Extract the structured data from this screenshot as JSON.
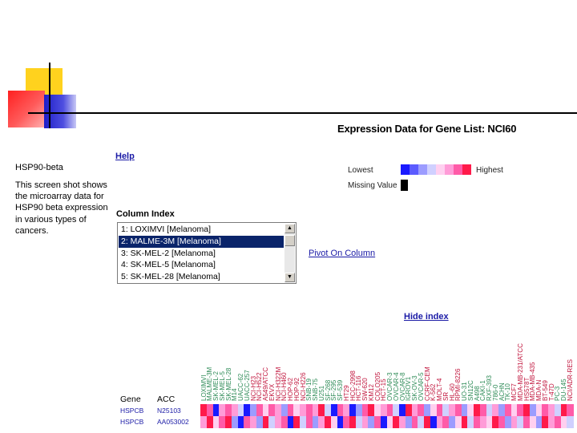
{
  "caption": {
    "title": "HSP90-beta",
    "body": "This screen shot shows the microarray data for HSP90 beta expression in various types of cancers."
  },
  "page_title": "Expression Data for Gene List: NCI60",
  "help_label": "Help",
  "legend": {
    "lowest": "Lowest",
    "highest": "Highest",
    "missing": "Missing Value",
    "colors": [
      "#1a1aff",
      "#5b5bff",
      "#9c9cff",
      "#d0d0ff",
      "#ffd0f0",
      "#ff9cd8",
      "#ff5ba8",
      "#ff1a4a"
    ],
    "missing_color": "#000000"
  },
  "column_index": {
    "label": "Column Index",
    "items": [
      "1: LOXIMVI [Melanoma]",
      "2: MALME-3M [Melanoma]",
      "3: SK-MEL-2 [Melanoma]",
      "4: SK-MEL-5 [Melanoma]",
      "5: SK-MEL-28 [Melanoma]"
    ],
    "selected_index": 1
  },
  "pivot_label": "Pivot On Column",
  "hide_index_label": "Hide index",
  "heatmap": {
    "gene_header": "Gene",
    "acc_header": "ACC",
    "rows": [
      {
        "gene": "HSPCB",
        "acc": "N25103"
      },
      {
        "gene": "HSPCB",
        "acc": "AA053002"
      }
    ],
    "columns": [
      {
        "label": "LOXIMVI",
        "color": "#2e8b57"
      },
      {
        "label": "MALME-3M",
        "color": "#2e8b57"
      },
      {
        "label": "SK-MEL-2",
        "color": "#2e8b57"
      },
      {
        "label": "SK-MEL-5",
        "color": "#2e8b57"
      },
      {
        "label": "SK-MEL-28",
        "color": "#2e8b57"
      },
      {
        "label": "M14",
        "color": "#2e8b57"
      },
      {
        "label": "UACC-62",
        "color": "#2e8b57"
      },
      {
        "label": "UACC-257",
        "color": "#2e8b57"
      },
      {
        "label": "NCI-H23",
        "color": "#c0143c"
      },
      {
        "label": "NCI-H522",
        "color": "#c0143c"
      },
      {
        "label": "A549/ATCC",
        "color": "#c0143c"
      },
      {
        "label": "EKVX",
        "color": "#c0143c"
      },
      {
        "label": "NCI-H322M",
        "color": "#c0143c"
      },
      {
        "label": "NCI-H460",
        "color": "#c0143c"
      },
      {
        "label": "HOP-62",
        "color": "#c0143c"
      },
      {
        "label": "HOP-92",
        "color": "#c0143c"
      },
      {
        "label": "NCI-H226",
        "color": "#c0143c"
      },
      {
        "label": "SNB-19",
        "color": "#2e8b57"
      },
      {
        "label": "SNB-75",
        "color": "#2e8b57"
      },
      {
        "label": "U251",
        "color": "#2e8b57"
      },
      {
        "label": "SF-268",
        "color": "#2e8b57"
      },
      {
        "label": "SF-295",
        "color": "#2e8b57"
      },
      {
        "label": "SF-539",
        "color": "#2e8b57"
      },
      {
        "label": "HT29",
        "color": "#c0143c"
      },
      {
        "label": "HCC-2998",
        "color": "#c0143c"
      },
      {
        "label": "HCT-116",
        "color": "#c0143c"
      },
      {
        "label": "SW-620",
        "color": "#c0143c"
      },
      {
        "label": "KM12",
        "color": "#c0143c"
      },
      {
        "label": "COLO205",
        "color": "#c0143c"
      },
      {
        "label": "HCT-15",
        "color": "#c0143c"
      },
      {
        "label": "OVCAR-3",
        "color": "#2e8b57"
      },
      {
        "label": "OVCAR-4",
        "color": "#2e8b57"
      },
      {
        "label": "OVCAR-8",
        "color": "#2e8b57"
      },
      {
        "label": "IGROV1",
        "color": "#2e8b57"
      },
      {
        "label": "SK-OV-3",
        "color": "#2e8b57"
      },
      {
        "label": "OVCAR-5",
        "color": "#2e8b57"
      },
      {
        "label": "CCRF-CEM",
        "color": "#c0143c"
      },
      {
        "label": "K-562",
        "color": "#c0143c"
      },
      {
        "label": "MOLT-4",
        "color": "#c0143c"
      },
      {
        "label": "SR",
        "color": "#c0143c"
      },
      {
        "label": "HL-60",
        "color": "#c0143c"
      },
      {
        "label": "RPMI-8226",
        "color": "#c0143c"
      },
      {
        "label": "UO-31",
        "color": "#2e8b57"
      },
      {
        "label": "SN12C",
        "color": "#2e8b57"
      },
      {
        "label": "A498",
        "color": "#2e8b57"
      },
      {
        "label": "CAKI-1",
        "color": "#2e8b57"
      },
      {
        "label": "RXF-393",
        "color": "#2e8b57"
      },
      {
        "label": "786-0",
        "color": "#2e8b57"
      },
      {
        "label": "ACHN",
        "color": "#2e8b57"
      },
      {
        "label": "TK-10",
        "color": "#2e8b57"
      },
      {
        "label": "MCF7",
        "color": "#c0143c"
      },
      {
        "label": "MDA-MB-231/ATCC",
        "color": "#c0143c"
      },
      {
        "label": "HS578T",
        "color": "#c0143c"
      },
      {
        "label": "MDA-MB-435",
        "color": "#c0143c"
      },
      {
        "label": "MDA-N",
        "color": "#c0143c"
      },
      {
        "label": "BT-549",
        "color": "#c0143c"
      },
      {
        "label": "T-47D",
        "color": "#c0143c"
      },
      {
        "label": "PC-3",
        "color": "#2e8b57"
      },
      {
        "label": "DU-145",
        "color": "#2e8b57"
      },
      {
        "label": "NCI/ADR-RES",
        "color": "#c0143c"
      }
    ],
    "row_levels": [
      [
        7,
        6,
        0,
        5,
        6,
        5,
        3,
        0,
        2,
        6,
        4,
        6,
        5,
        2,
        6,
        4,
        5,
        6,
        5,
        7,
        3,
        0,
        6,
        5,
        0,
        2,
        6,
        7,
        4,
        5,
        6,
        3,
        0,
        7,
        5,
        6,
        2,
        4,
        6,
        3,
        5,
        6,
        2,
        4,
        7,
        6,
        3,
        5,
        2,
        6,
        4,
        6,
        7,
        2,
        4,
        6,
        5,
        3,
        7,
        6
      ],
      [
        5,
        7,
        4,
        6,
        7,
        2,
        0,
        6,
        5,
        2,
        7,
        3,
        5,
        6,
        0,
        7,
        3,
        6,
        2,
        5,
        7,
        4,
        0,
        6,
        7,
        3,
        5,
        2,
        6,
        0,
        4,
        7,
        5,
        2,
        6,
        3,
        7,
        0,
        5,
        6,
        2,
        4,
        7,
        3,
        6,
        5,
        4,
        7,
        6,
        2,
        5,
        3,
        6,
        4,
        2,
        7,
        5,
        6,
        4,
        3
      ]
    ]
  }
}
